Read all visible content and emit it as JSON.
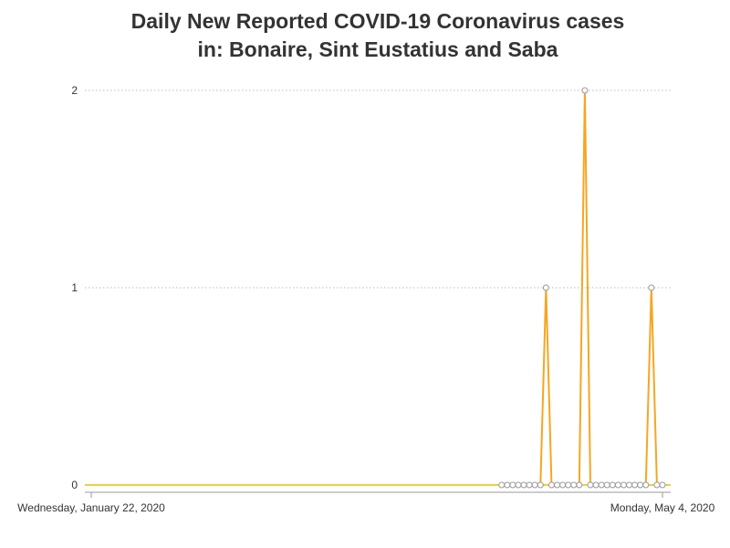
{
  "title_line1": "Daily New Reported COVID-19 Coronavirus cases",
  "title_line2": "in: Bonaire, Sint Eustatius and Saba",
  "colors": {
    "line": "#f5a623",
    "zero_line": "#e8c000",
    "marker_stroke": "#999999",
    "grid": "#bbbbbb",
    "axis": "#999999"
  },
  "chart_data": {
    "type": "line",
    "title": "Daily New Reported COVID-19 Coronavirus cases in: Bonaire, Sint Eustatius and Saba",
    "x_start": "2020-01-22",
    "x_end": "2020-05-04",
    "x_tick_labels": [
      "Wednesday, January 22, 2020",
      "Monday, May 4, 2020"
    ],
    "y_ticks": [
      "0",
      "1",
      "2"
    ],
    "ylim": [
      0,
      2
    ],
    "grid": "horizontal dotted",
    "legend": "none",
    "series": [
      {
        "points": [
          {
            "x": "2020-04-05",
            "y": 0
          },
          {
            "x": "2020-04-06",
            "y": 0
          },
          {
            "x": "2020-04-07",
            "y": 0
          },
          {
            "x": "2020-04-08",
            "y": 0
          },
          {
            "x": "2020-04-09",
            "y": 0
          },
          {
            "x": "2020-04-10",
            "y": 0
          },
          {
            "x": "2020-04-11",
            "y": 0
          },
          {
            "x": "2020-04-12",
            "y": 0
          },
          {
            "x": "2020-04-13",
            "y": 1
          },
          {
            "x": "2020-04-14",
            "y": 0
          },
          {
            "x": "2020-04-15",
            "y": 0
          },
          {
            "x": "2020-04-16",
            "y": 0
          },
          {
            "x": "2020-04-17",
            "y": 0
          },
          {
            "x": "2020-04-18",
            "y": 0
          },
          {
            "x": "2020-04-19",
            "y": 0
          },
          {
            "x": "2020-04-20",
            "y": 2
          },
          {
            "x": "2020-04-21",
            "y": 0
          },
          {
            "x": "2020-04-22",
            "y": 0
          },
          {
            "x": "2020-04-23",
            "y": 0
          },
          {
            "x": "2020-04-24",
            "y": 0
          },
          {
            "x": "2020-04-25",
            "y": 0
          },
          {
            "x": "2020-04-26",
            "y": 0
          },
          {
            "x": "2020-04-27",
            "y": 0
          },
          {
            "x": "2020-04-28",
            "y": 0
          },
          {
            "x": "2020-04-29",
            "y": 0
          },
          {
            "x": "2020-04-30",
            "y": 0
          },
          {
            "x": "2020-05-01",
            "y": 0
          },
          {
            "x": "2020-05-02",
            "y": 1
          },
          {
            "x": "2020-05-03",
            "y": 0
          },
          {
            "x": "2020-05-04",
            "y": 0
          }
        ]
      }
    ]
  }
}
